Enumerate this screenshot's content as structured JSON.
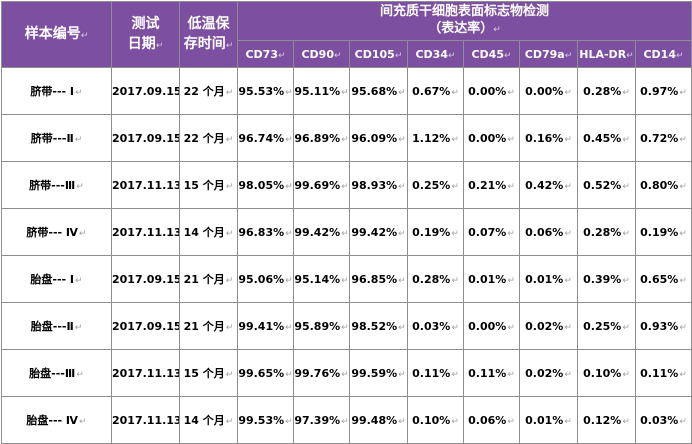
{
  "headers": {
    "sample": "样本编号",
    "test_date_1": "测试",
    "test_date_2": "日期",
    "storage_1": "低温保",
    "storage_2": "存时间",
    "group_1": "间充质干细胞表面标志物检测",
    "group_2": "（表达率）"
  },
  "markers": [
    "CD73",
    "CD90",
    "CD105",
    "CD34",
    "CD45",
    "CD79a",
    "HLA-DR",
    "CD14"
  ],
  "rows": [
    {
      "sample": "脐带--- Ⅰ",
      "date": "2017.09.15",
      "months": "22 个月",
      "values": [
        "95.53%",
        "95.11%",
        "95.68%",
        "0.67%",
        "0.00%",
        "0.00%",
        "0.28%",
        "0.97%"
      ]
    },
    {
      "sample": "脐带---Ⅱ",
      "date": "2017.09.15",
      "months": "22 个月",
      "values": [
        "96.74%",
        "96.89%",
        "96.09%",
        "1.12%",
        "0.00%",
        "0.16%",
        "0.45%",
        "0.72%"
      ]
    },
    {
      "sample": "脐带---Ⅲ",
      "date": "2017.11.13",
      "months": "15 个月",
      "values": [
        "98.05%",
        "99.69%",
        "98.93%",
        "0.25%",
        "0.21%",
        "0.42%",
        "0.52%",
        "0.80%"
      ]
    },
    {
      "sample": "脐带--- Ⅳ",
      "date": "2017.11.13",
      "months": "14 个月",
      "values": [
        "96.83%",
        "99.42%",
        "99.42%",
        "0.19%",
        "0.07%",
        "0.06%",
        "0.28%",
        "0.19%"
      ]
    },
    {
      "sample": "胎盘--- Ⅰ",
      "date": "2017.09.15",
      "months": "21 个月",
      "values": [
        "95.06%",
        "95.14%",
        "96.85%",
        "0.28%",
        "0.01%",
        "0.01%",
        "0.39%",
        "0.65%"
      ]
    },
    {
      "sample": "胎盘---Ⅱ",
      "date": "2017.09.15",
      "months": "21 个月",
      "values": [
        "99.41%",
        "95.89%",
        "98.52%",
        "0.03%",
        "0.00%",
        "0.02%",
        "0.25%",
        "0.93%"
      ]
    },
    {
      "sample": "胎盘---Ⅲ",
      "date": "2017.11.13",
      "months": "15 个月",
      "values": [
        "99.65%",
        "99.76%",
        "99.59%",
        "0.11%",
        "0.11%",
        "0.02%",
        "0.10%",
        "0.11%"
      ]
    },
    {
      "sample": "胎盘--- Ⅳ",
      "date": "2017.11.13",
      "months": "14 个月",
      "values": [
        "99.53%",
        "97.39%",
        "99.48%",
        "0.10%",
        "0.06%",
        "0.01%",
        "0.12%",
        "0.03%"
      ]
    }
  ],
  "colors": {
    "header_bg": "#7d4fa0",
    "header_text": "#ffffff",
    "grid": "#8e8e8e"
  }
}
